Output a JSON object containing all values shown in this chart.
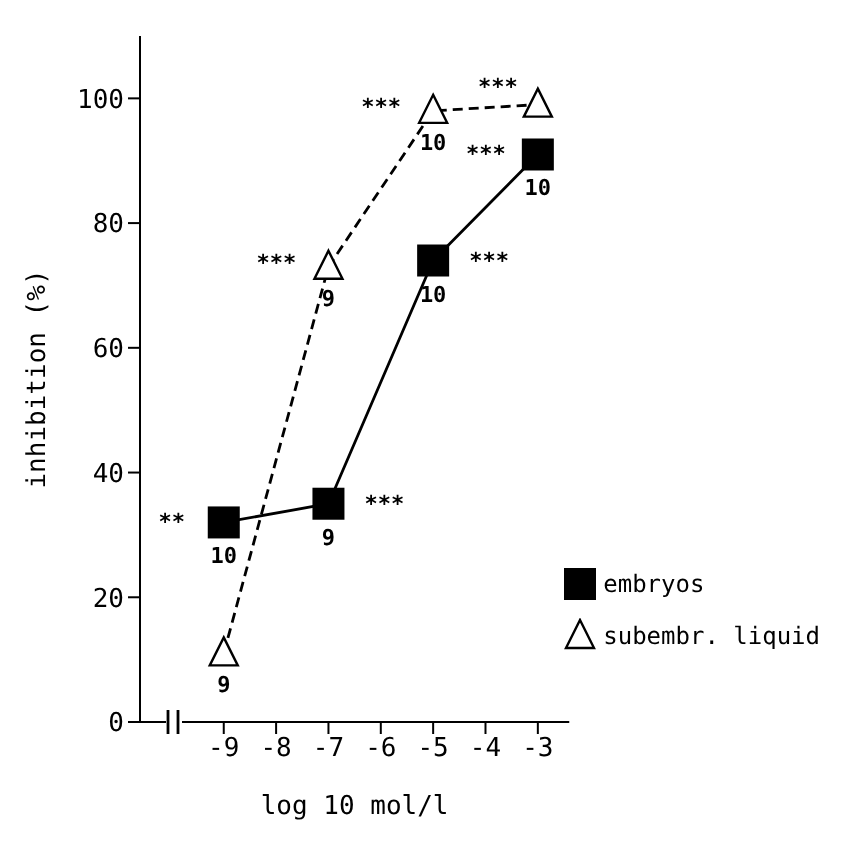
{
  "chart_data": {
    "type": "line",
    "xlabel": "log 10 mol/l",
    "ylabel": "inhibition (%)",
    "xlim": [
      -10.6,
      -2.4
    ],
    "xticks": [
      -9,
      -8,
      -7,
      -6,
      -5,
      -4,
      -3
    ],
    "ylim": [
      0,
      110
    ],
    "yticks": [
      0,
      20,
      40,
      60,
      80,
      100
    ],
    "grid": false,
    "legend": "bottom right",
    "x": [
      -9,
      -7,
      -5,
      -3
    ],
    "series": [
      {
        "name": "embryos",
        "color": "#000000",
        "values": [
          32,
          35,
          74,
          91
        ],
        "marker": "square",
        "line_style": "solid"
      },
      {
        "name": "subembr. liquid",
        "color": "#000000",
        "values": [
          11,
          73,
          98,
          99
        ],
        "marker": "triangle",
        "line_style": "dashed"
      }
    ],
    "annotations": [
      {
        "text": "**",
        "x": -9,
        "y": 32
      },
      {
        "text": "10",
        "x": -9,
        "y": 32
      },
      {
        "text": "9",
        "x": -7,
        "y": 35
      },
      {
        "text": "***",
        "x": -7,
        "y": 35
      },
      {
        "text": "10",
        "x": -5,
        "y": 74
      },
      {
        "text": "***",
        "x": -5,
        "y": 74
      },
      {
        "text": "***",
        "x": -3,
        "y": 91
      },
      {
        "text": "10",
        "x": -3,
        "y": 91
      },
      {
        "text": "9",
        "x": -9,
        "y": 11
      },
      {
        "text": "***",
        "x": -7,
        "y": 73
      },
      {
        "text": "9",
        "x": -7,
        "y": 73
      },
      {
        "text": "***",
        "x": -5,
        "y": 98
      },
      {
        "text": "10",
        "x": -5,
        "y": 98
      },
      {
        "text": "***",
        "x": -3,
        "y": 99
      }
    ]
  }
}
